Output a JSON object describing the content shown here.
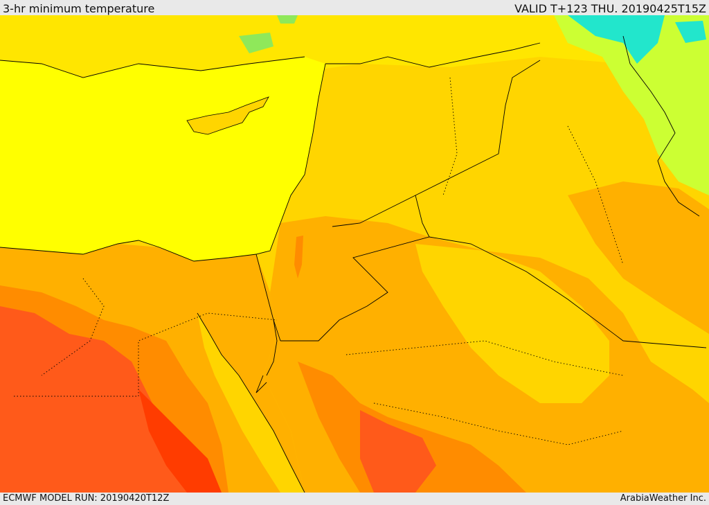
{
  "header": {
    "title": "3-hr minimum temperature",
    "valid": "VALID T+123 THU. 20190425T15Z"
  },
  "footer": {
    "model_run": "ECMWF MODEL RUN: 20190420T12Z",
    "credit": "ArabiaWeather Inc."
  },
  "palette": {
    "sea": "#ffff00",
    "light_yellow": "#ffe600",
    "gold": "#ffd500",
    "orange": "#ffb000",
    "dark_orange": "#ff8c00",
    "red_orange": "#ff5a1a",
    "red": "#ff3c00",
    "green": "#ccff33",
    "cyan": "#22e6cc"
  }
}
